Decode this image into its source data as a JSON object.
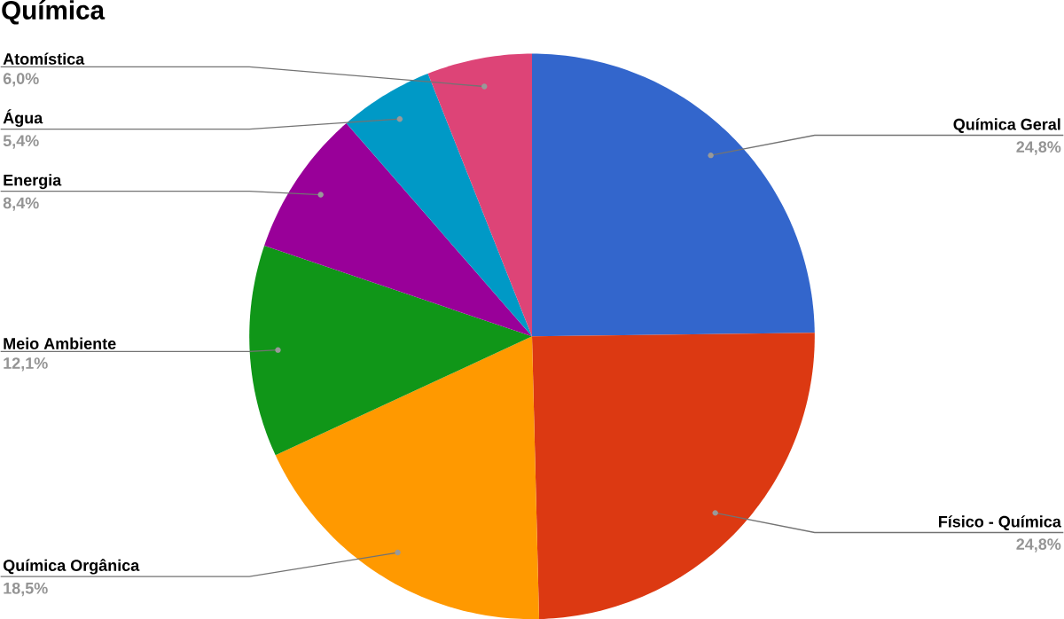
{
  "chart_data": {
    "type": "pie",
    "title": "Química",
    "categories": [
      "Química Geral",
      "Físico - Química",
      "Química Orgânica",
      "Meio Ambiente",
      "Energia",
      "Água",
      "Atomística"
    ],
    "values": [
      24.8,
      24.8,
      18.5,
      12.1,
      8.4,
      5.4,
      6.0
    ],
    "colors": [
      "#3366cc",
      "#dc3912",
      "#ff9900",
      "#109618",
      "#990099",
      "#0099c6",
      "#dd4477"
    ],
    "value_labels": [
      "24,8%",
      "24,8%",
      "18,5%",
      "12,1%",
      "8,4%",
      "5,4%",
      "6,0%"
    ]
  }
}
